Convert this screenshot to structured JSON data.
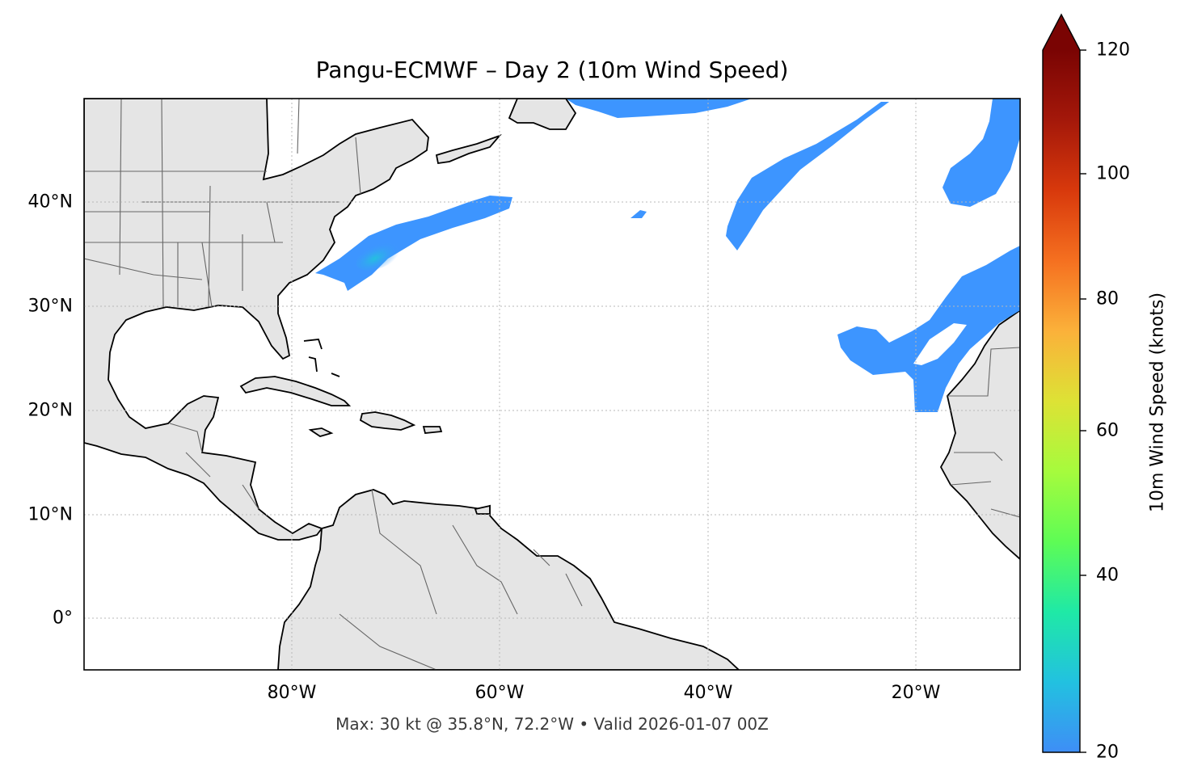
{
  "title": "Pangu-ECMWF – Day 2 (10m Wind Speed)",
  "footer": "Max: 30 kt @ 35.8°N, 72.2°W • Valid 2026-01-07 00Z",
  "map": {
    "lat_labels": [
      "40°N",
      "30°N",
      "20°N",
      "10°N",
      "0°"
    ],
    "lon_labels": [
      "80°W",
      "60°W",
      "40°W",
      "20°W"
    ],
    "land_color": "#e5e5e5",
    "coast_color": "#000000",
    "border_color": "#666666",
    "wind_fill_color": "#3d95ff",
    "wind_core_color": "#24b9e6"
  },
  "colorbar": {
    "label": "10m Wind Speed (knots)",
    "ticks": [
      "120",
      "100",
      "80",
      "60",
      "40",
      "20"
    ],
    "min": 20,
    "max": 120,
    "colors": [
      "#3e8ef6",
      "#22c1e0",
      "#1fe9a6",
      "#5efc55",
      "#a6fb3d",
      "#dde235",
      "#fbb13a",
      "#f57020",
      "#d8390c",
      "#a4180a",
      "#7a0403"
    ]
  }
}
